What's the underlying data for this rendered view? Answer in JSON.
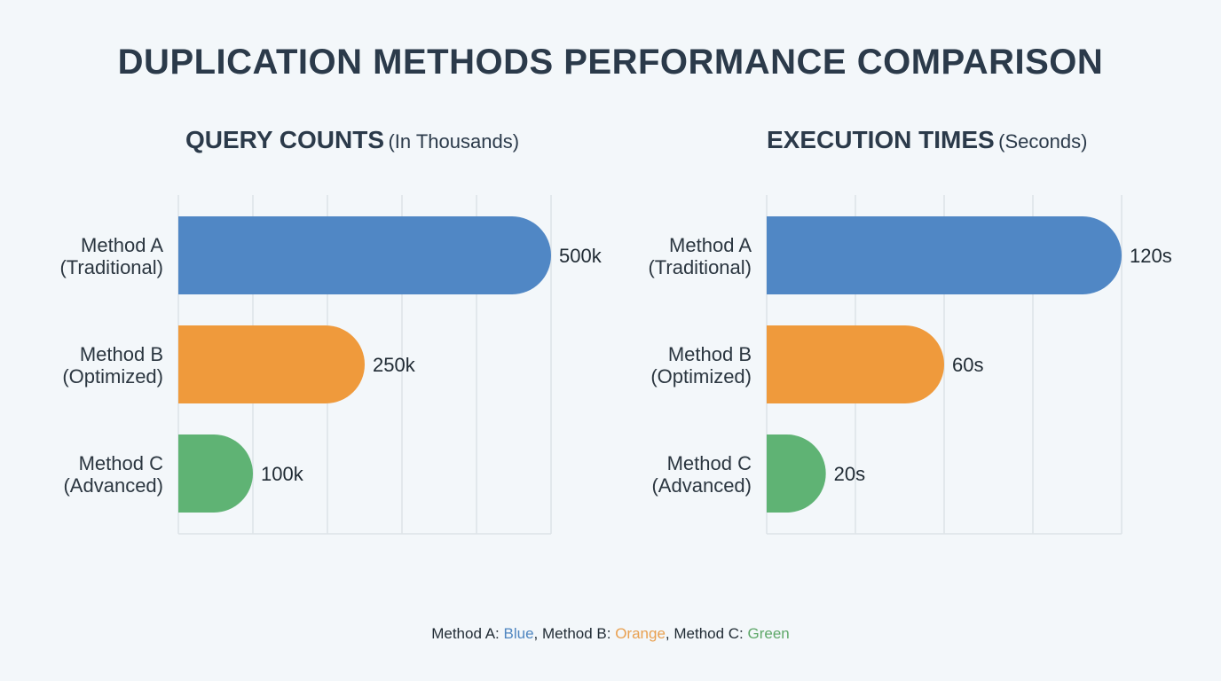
{
  "title": "DUPLICATION METHODS PERFORMANCE COMPARISON",
  "colors": {
    "Method A": "#5087c5",
    "Method B": "#ef9a3c",
    "Method C": "#5fb374",
    "grid": "#dde3e8",
    "text": "#1f2a33"
  },
  "legend": {
    "a_label": "Method A: ",
    "a_color": "Blue",
    "sep1": ", ",
    "b_label": "Method B: ",
    "b_color": "Orange",
    "sep2": ", ",
    "c_label": "Method C: ",
    "c_color": "Green"
  },
  "chart_data": [
    {
      "type": "bar",
      "orientation": "horizontal",
      "title": "QUERY COUNTS",
      "subtitle": "(In Thousands)",
      "categories": [
        [
          "Method A",
          "(Traditional)"
        ],
        [
          "Method B",
          "(Optimized)"
        ],
        [
          "Method C",
          "(Advanced)"
        ]
      ],
      "values": [
        500,
        250,
        100
      ],
      "data_labels": [
        "500k",
        "250k",
        "100k"
      ],
      "xlim": [
        0,
        500
      ],
      "grid_step": 100,
      "grid": true
    },
    {
      "type": "bar",
      "orientation": "horizontal",
      "title": "EXECUTION TIMES",
      "subtitle": "(Seconds)",
      "categories": [
        [
          "Method A",
          "(Traditional)"
        ],
        [
          "Method B",
          "(Optimized)"
        ],
        [
          "Method C",
          "(Advanced)"
        ]
      ],
      "values": [
        120,
        60,
        20
      ],
      "data_labels": [
        "120s",
        "60s",
        "20s"
      ],
      "xlim": [
        0,
        120
      ],
      "grid_step": 30,
      "grid": true
    }
  ]
}
